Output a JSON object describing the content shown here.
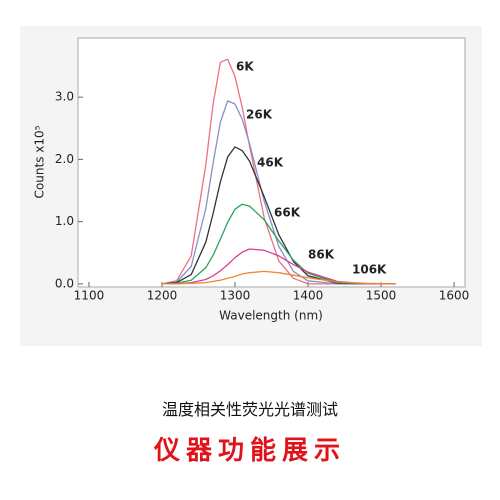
{
  "chart_data": {
    "type": "line",
    "x_label": "Wavelength (nm)",
    "y_label": "Counts x10⁵",
    "x": [
      1200,
      1220,
      1240,
      1260,
      1270,
      1280,
      1290,
      1300,
      1310,
      1320,
      1340,
      1360,
      1380,
      1400,
      1440,
      1480,
      1520
    ],
    "series": [
      {
        "name": "6K",
        "color": "#ee6f80",
        "values": [
          0.0,
          0.05,
          0.45,
          1.91,
          2.89,
          3.56,
          3.61,
          3.33,
          2.83,
          2.21,
          1.06,
          0.37,
          0.09,
          0.0,
          0.0,
          0.0,
          0.0
        ]
      },
      {
        "name": "26K",
        "color": "#8a8fc8",
        "values": [
          0.0,
          0.03,
          0.28,
          1.21,
          1.94,
          2.6,
          2.94,
          2.89,
          2.64,
          2.25,
          1.33,
          0.6,
          0.2,
          0.05,
          0.0,
          0.0,
          0.0
        ]
      },
      {
        "name": "46K",
        "color": "#333333",
        "values": [
          0.0,
          0.02,
          0.15,
          0.67,
          1.13,
          1.64,
          2.04,
          2.2,
          2.14,
          1.97,
          1.4,
          0.79,
          0.36,
          0.13,
          0.01,
          0.0,
          0.0
        ]
      },
      {
        "name": "66K",
        "color": "#2aa35c",
        "values": [
          0.0,
          0.01,
          0.06,
          0.26,
          0.46,
          0.72,
          0.99,
          1.2,
          1.28,
          1.25,
          1.03,
          0.69,
          0.38,
          0.17,
          0.02,
          0.0,
          0.0
        ]
      },
      {
        "name": "86K",
        "color": "#d8409a",
        "values": [
          0.0,
          0.0,
          0.02,
          0.07,
          0.13,
          0.21,
          0.31,
          0.42,
          0.51,
          0.56,
          0.54,
          0.45,
          0.31,
          0.19,
          0.04,
          0.0,
          0.0
        ]
      },
      {
        "name": "106K",
        "color": "#ec8a30",
        "values": [
          0.0,
          0.0,
          0.01,
          0.02,
          0.04,
          0.06,
          0.09,
          0.12,
          0.16,
          0.18,
          0.2,
          0.18,
          0.14,
          0.1,
          0.03,
          0.01,
          0.0
        ]
      }
    ],
    "xlim": [
      1085,
      1615
    ],
    "xticks": [
      1100,
      1200,
      1300,
      1400,
      1500,
      1600
    ],
    "ylim": [
      -0.05,
      3.95
    ],
    "yticks": [
      {
        "value": 0,
        "label": "0.0"
      },
      {
        "value": 1,
        "label": "1.0"
      },
      {
        "value": 2,
        "label": "2.0"
      },
      {
        "value": 3,
        "label": "3.0"
      }
    ],
    "grid": false
  },
  "footer": {
    "caption": "温度相关性荧光光谱测试",
    "banner": "仪器功能展示"
  }
}
